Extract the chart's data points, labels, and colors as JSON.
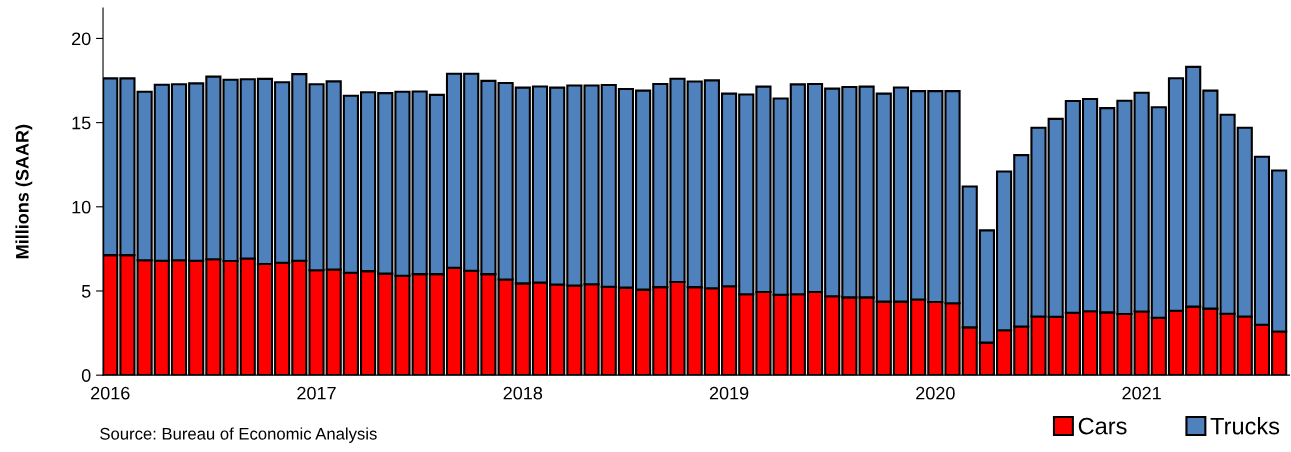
{
  "chart_data": {
    "type": "bar",
    "stacked": true,
    "ylabel": "Millions (SAAR)",
    "categories": [
      "2016",
      null,
      null,
      null,
      null,
      null,
      null,
      null,
      null,
      null,
      null,
      null,
      "2017",
      null,
      null,
      null,
      null,
      null,
      null,
      null,
      null,
      null,
      null,
      null,
      "2018",
      null,
      null,
      null,
      null,
      null,
      null,
      null,
      null,
      null,
      null,
      null,
      "2019",
      null,
      null,
      null,
      null,
      null,
      null,
      null,
      null,
      null,
      null,
      null,
      "2020",
      null,
      null,
      null,
      null,
      null,
      null,
      null,
      null,
      null,
      null,
      null,
      "2021",
      null,
      null,
      null,
      null,
      null,
      null,
      null,
      null
    ],
    "series": [
      {
        "name": "Cars",
        "color": "#ff0000",
        "values": [
          7.13,
          7.13,
          6.83,
          6.8,
          6.83,
          6.8,
          6.88,
          6.78,
          6.93,
          6.6,
          6.68,
          6.8,
          6.23,
          6.28,
          6.08,
          6.18,
          6.03,
          5.9,
          6.0,
          6.0,
          6.38,
          6.2,
          6.0,
          5.68,
          5.45,
          5.5,
          5.38,
          5.33,
          5.4,
          5.25,
          5.2,
          5.08,
          5.23,
          5.53,
          5.23,
          5.16,
          5.28,
          4.81,
          4.94,
          4.77,
          4.81,
          4.94,
          4.69,
          4.62,
          4.62,
          4.37,
          4.37,
          4.49,
          4.35,
          4.27,
          2.84,
          1.93,
          2.67,
          2.89,
          3.48,
          3.46,
          3.7,
          3.8,
          3.73,
          3.63,
          3.78,
          3.41,
          3.83,
          4.07,
          3.95,
          3.65,
          3.48,
          2.99,
          2.59
        ]
      },
      {
        "name": "Trucks",
        "color": "#4f81bd",
        "values": [
          10.5,
          10.5,
          10.0,
          10.45,
          10.45,
          10.53,
          10.85,
          10.77,
          10.65,
          11.0,
          10.72,
          11.08,
          11.05,
          11.17,
          10.52,
          10.62,
          10.72,
          10.93,
          10.85,
          10.65,
          11.52,
          11.7,
          11.48,
          11.67,
          11.63,
          11.65,
          11.7,
          11.87,
          11.8,
          11.98,
          11.8,
          11.82,
          12.06,
          12.08,
          12.21,
          12.35,
          11.44,
          11.86,
          12.2,
          11.66,
          12.46,
          12.35,
          12.33,
          12.5,
          12.52,
          12.35,
          12.72,
          12.38,
          12.52,
          12.6,
          8.37,
          6.67,
          9.43,
          10.18,
          11.22,
          11.76,
          12.58,
          12.6,
          12.13,
          12.67,
          12.99,
          12.5,
          13.81,
          14.24,
          12.95,
          11.82,
          11.22,
          9.98,
          9.57
        ]
      }
    ],
    "ylim": [
      0,
      21.8
    ],
    "yticks": [
      0,
      5,
      10,
      15,
      20
    ],
    "grid": false,
    "legend": "bottom right",
    "annotations": [
      "Source: Bureau of Economic Analysis"
    ]
  }
}
